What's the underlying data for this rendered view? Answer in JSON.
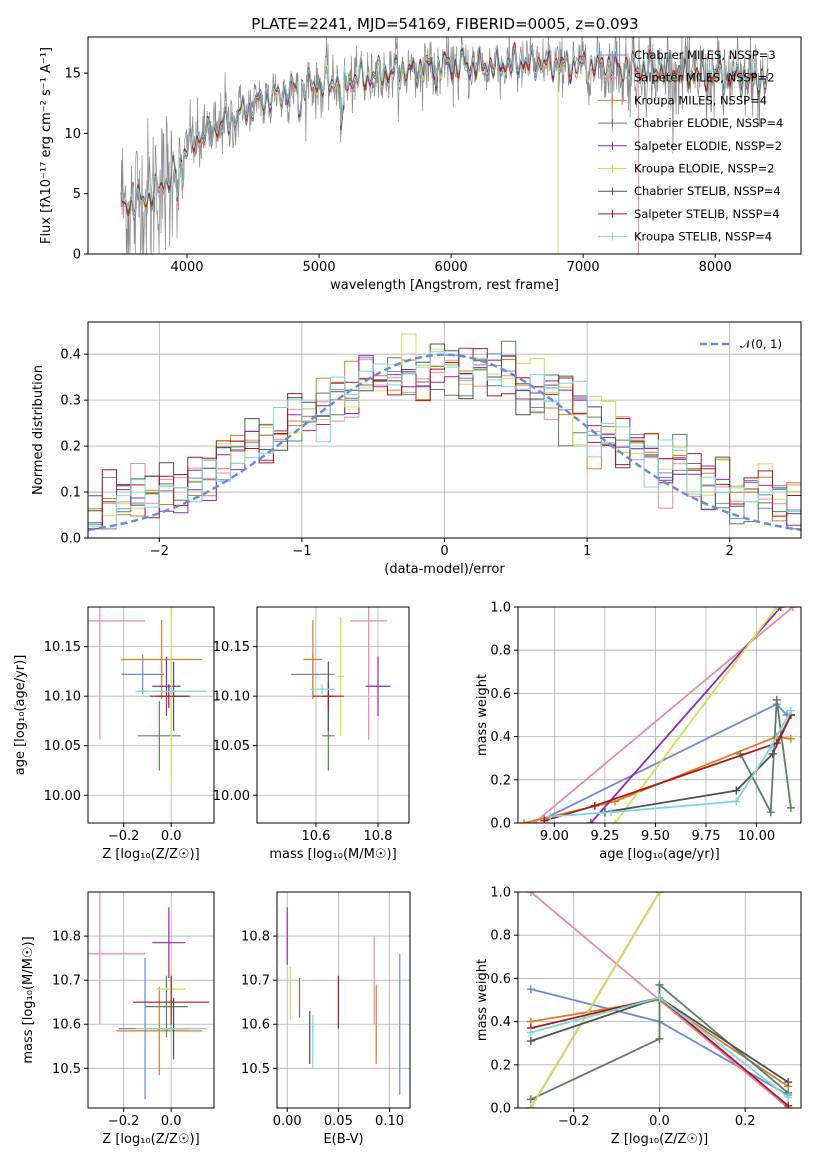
{
  "title": "PLATE=2241, MJD=54169, FIBERID=0005, z=0.093",
  "colors": {
    "Chabrier MILES": "#6a8bd6",
    "Salpeter MILES": "#e78ca8",
    "Kroupa MILES": "#e07b20",
    "Chabrier ELODIE": "#5a8060",
    "Salpeter ELODIE": "#9a25b0",
    "Kroupa ELODIE": "#cfe050",
    "Chabrier STELIB": "#505050",
    "Salpeter STELIB": "#b01818",
    "Kroupa STELIB": "#78d8e0",
    "spectrum": "#888888",
    "normal": "#6a8bd6"
  },
  "chart_data": [
    {
      "type": "line",
      "id": "spectrum",
      "title": "PLATE=2241, MJD=54169, FIBERID=0005, z=0.093",
      "xlabel": "wavelength [Angstrom, rest frame]",
      "ylabel": "Flux [f$_\\lambda$10$^{-17}$ erg cm$^{-2}$ s$^{-1}$ A$^{-1}$]",
      "ylabel_display": "Flux [fλ10⁻¹⁷ erg cm⁻² s⁻¹ A⁻¹]",
      "xlim": [
        3250,
        8650
      ],
      "ylim": [
        0,
        18
      ],
      "xticks": [
        4000,
        5000,
        6000,
        7000,
        8000
      ],
      "yticks": [
        0,
        5,
        10,
        15
      ],
      "grid": false,
      "legend_position": "upper right",
      "legend": [
        "Chabrier MILES, N$_{SSP}$=3",
        "Salpeter MILES, N$_{SSP}$=2",
        "Kroupa MILES, N$_{SSP}$=4",
        "Chabrier ELODIE, N$_{SSP}$=4",
        "Salpeter ELODIE, N$_{SSP}$=2",
        "Kroupa ELODIE, N$_{SSP}$=2",
        "Chabrier STELIB, N$_{SSP}$=4",
        "Salpeter STELIB, N$_{SSP}$=4",
        "Kroupa STELIB, N$_{SSP}$=4"
      ],
      "legend_display": [
        "Chabrier MILES, NSSP=3",
        "Salpeter MILES, NSSP=2",
        "Kroupa MILES, NSSP=4",
        "Chabrier ELODIE, NSSP=4",
        "Salpeter ELODIE, NSSP=2",
        "Kroupa ELODIE, NSSP=2",
        "Chabrier STELIB, NSSP=4",
        "Salpeter STELIB, NSSP=4",
        "Kroupa STELIB, NSSP=4"
      ],
      "continuum": {
        "x": [
          3500,
          3600,
          3700,
          3800,
          3900,
          3950,
          4000,
          4100,
          4200,
          4300,
          4400,
          4500,
          4700,
          4900,
          5100,
          5300,
          5500,
          5700,
          5900,
          6100,
          6300,
          6500,
          6700,
          6900,
          7100,
          7300,
          7500,
          7700,
          7900,
          8100,
          8300,
          8400
        ],
        "y": [
          4.0,
          4.1,
          4.7,
          5.5,
          6.8,
          7.6,
          9.0,
          9.6,
          10.2,
          11.0,
          11.7,
          12.4,
          13.3,
          13.9,
          14.2,
          14.5,
          15.0,
          15.2,
          15.6,
          15.6,
          15.6,
          15.8,
          15.8,
          15.6,
          15.6,
          15.4,
          15.3,
          15.0,
          14.8,
          14.6,
          14.4,
          14.4
        ]
      },
      "drop_lines": [
        {
          "x": 6810,
          "model": "Kroupa ELODIE"
        },
        {
          "x": 7420,
          "model": "Salpeter MILES"
        }
      ]
    },
    {
      "type": "histogram",
      "id": "residuals",
      "xlabel": "(data-model)/error",
      "ylabel": "Normed distribution",
      "xlim": [
        -2.5,
        2.5
      ],
      "ylim": [
        0,
        0.47
      ],
      "xticks": [
        -2,
        -1,
        0,
        1,
        2
      ],
      "yticks": [
        0.0,
        0.1,
        0.2,
        0.3,
        0.4
      ],
      "grid": true,
      "bin_width": 0.1,
      "reference": {
        "label": "$\\mathcal{N}(0,1)$",
        "display": "𝒩(0, 1)",
        "mean": 0,
        "sigma": 1,
        "style": "dashed"
      }
    },
    {
      "type": "scatter",
      "id": "age-vs-Z",
      "xlabel": "Z [log$_{10}$(Z/Z$_\\odot$)]",
      "xlabel_display": "Z [log₁₀(Z/Z☉)]",
      "ylabel": "age  [log$_{10}$(age/yr)]",
      "ylabel_display": "age  [log₁₀(age/yr)]",
      "xlim": [
        -0.35,
        0.18
      ],
      "ylim": [
        9.972,
        10.19
      ],
      "xticks": [
        -0.2,
        0.0
      ],
      "yticks": [
        10.0,
        10.05,
        10.1,
        10.15
      ],
      "grid": true,
      "points": [
        {
          "model": "Chabrier MILES",
          "x": -0.12,
          "y": 10.122,
          "xerr": 0.09,
          "yerr": 0.02
        },
        {
          "model": "Salpeter MILES",
          "x": -0.3,
          "y": 10.176,
          "xerr": 0.19,
          "yerr": 0.12
        },
        {
          "model": "Kroupa MILES",
          "x": -0.04,
          "y": 10.137,
          "xerr": 0.17,
          "yerr": 0.04
        },
        {
          "model": "Chabrier ELODIE",
          "x": -0.05,
          "y": 10.06,
          "xerr": 0.09,
          "yerr": 0.035
        },
        {
          "model": "Salpeter ELODIE",
          "x": -0.02,
          "y": 10.11,
          "xerr": 0.06,
          "yerr": 0.03
        },
        {
          "model": "Kroupa ELODIE",
          "x": 0.0,
          "y": 10.105,
          "xerr": 0.01,
          "yerr": 0.09
        },
        {
          "model": "Chabrier STELIB",
          "x": 0.01,
          "y": 10.1,
          "xerr": 0.07,
          "yerr": 0.035
        },
        {
          "model": "Salpeter STELIB",
          "x": -0.01,
          "y": 10.1,
          "xerr": 0.08,
          "yerr": 0.012
        },
        {
          "model": "Kroupa STELIB",
          "x": 0.0,
          "y": 10.105,
          "xerr": 0.15,
          "yerr": 0.005
        }
      ]
    },
    {
      "type": "scatter",
      "id": "age-vs-mass",
      "xlabel": "mass [log$_{10}$(M/M$_\\odot$)]",
      "xlabel_display": "mass [log₁₀(M/M☉)]",
      "ylabel": "",
      "xlim": [
        10.41,
        10.9
      ],
      "ylim": [
        9.972,
        10.19
      ],
      "xticks": [
        10.6,
        10.8
      ],
      "yticks": [
        10.0,
        10.05,
        10.1,
        10.15
      ],
      "grid": true,
      "points": [
        {
          "model": "Chabrier MILES",
          "x": 10.59,
          "y": 10.122,
          "xerr": 0.07,
          "yerr": 0.02
        },
        {
          "model": "Salpeter MILES",
          "x": 10.77,
          "y": 10.176,
          "xerr": 0.06,
          "yerr": 0.12
        },
        {
          "model": "Kroupa MILES",
          "x": 10.59,
          "y": 10.137,
          "xerr": 0.03,
          "yerr": 0.04
        },
        {
          "model": "Chabrier ELODIE",
          "x": 10.64,
          "y": 10.06,
          "xerr": 0.02,
          "yerr": 0.035
        },
        {
          "model": "Salpeter ELODIE",
          "x": 10.8,
          "y": 10.11,
          "xerr": 0.04,
          "yerr": 0.03
        },
        {
          "model": "Kroupa ELODIE",
          "x": 10.68,
          "y": 10.12,
          "xerr": 0.01,
          "yerr": 0.06
        },
        {
          "model": "Chabrier STELIB",
          "x": 10.64,
          "y": 10.1,
          "xerr": 0.02,
          "yerr": 0.035
        },
        {
          "model": "Salpeter STELIB",
          "x": 10.64,
          "y": 10.1,
          "xerr": 0.05,
          "yerr": 0.015
        },
        {
          "model": "Kroupa STELIB",
          "x": 10.62,
          "y": 10.107,
          "xerr": 0.04,
          "yerr": 0.005
        }
      ]
    },
    {
      "type": "line",
      "id": "weight-vs-age",
      "xlabel": "age  [log$_{10}$(age/yr)]",
      "xlabel_display": "age  [log₁₀(age/yr)]",
      "ylabel": "mass weight",
      "xlim": [
        8.82,
        10.22
      ],
      "ylim": [
        0,
        1
      ],
      "xticks": [
        9.0,
        9.25,
        9.5,
        9.75,
        10.0
      ],
      "yticks": [
        0.0,
        0.2,
        0.4,
        0.6,
        0.8,
        1.0
      ],
      "grid": true,
      "series": [
        {
          "model": "Chabrier MILES",
          "x": [
            8.95,
            10.1,
            10.15
          ],
          "y": [
            0.02,
            0.55,
            0.5
          ]
        },
        {
          "model": "Salpeter MILES",
          "x": [
            8.9,
            10.18
          ],
          "y": [
            0.0,
            1.0
          ]
        },
        {
          "model": "Kroupa MILES",
          "x": [
            8.85,
            9.3,
            10.1,
            10.17
          ],
          "y": [
            0.0,
            0.1,
            0.4,
            0.39
          ]
        },
        {
          "model": "Chabrier ELODIE",
          "x": [
            9.92,
            10.07,
            10.1,
            10.17
          ],
          "y": [
            0.32,
            0.05,
            0.57,
            0.07
          ]
        },
        {
          "model": "Salpeter ELODIE",
          "x": [
            9.18,
            10.12
          ],
          "y": [
            0.0,
            1.0
          ]
        },
        {
          "model": "Kroupa ELODIE",
          "x": [
            9.3,
            10.1
          ],
          "y": [
            0.0,
            1.0
          ]
        },
        {
          "model": "Chabrier STELIB",
          "x": [
            9.25,
            9.9,
            10.08,
            10.17
          ],
          "y": [
            0.05,
            0.15,
            0.32,
            0.5
          ]
        },
        {
          "model": "Salpeter STELIB",
          "x": [
            8.95,
            9.2,
            10.1,
            10.17
          ],
          "y": [
            0.01,
            0.08,
            0.37,
            0.5
          ]
        },
        {
          "model": "Kroupa STELIB",
          "x": [
            8.98,
            9.28,
            9.9,
            10.07,
            10.17
          ],
          "y": [
            0.03,
            0.05,
            0.1,
            0.35,
            0.52
          ]
        }
      ]
    },
    {
      "type": "scatter",
      "id": "mass-vs-Z",
      "xlabel": "Z [log$_{10}$(Z/Z$_\\odot$)]",
      "xlabel_display": "Z [log₁₀(Z/Z☉)]",
      "ylabel": "mass [log$_{10}$(M/M$_\\odot$)]",
      "ylabel_display": "mass [log₁₀(M/M☉)]",
      "xlim": [
        -0.35,
        0.18
      ],
      "ylim": [
        10.41,
        10.9
      ],
      "xticks": [
        -0.2,
        0.0
      ],
      "yticks": [
        10.5,
        10.6,
        10.7,
        10.8
      ],
      "grid": true,
      "points": [
        {
          "model": "Chabrier MILES",
          "x": -0.11,
          "y": 10.59,
          "xerr": 0.11,
          "yerr": 0.16
        },
        {
          "model": "Salpeter MILES",
          "x": -0.3,
          "y": 10.76,
          "xerr": 0.19,
          "yerr": 0.16
        },
        {
          "model": "Kroupa MILES",
          "x": -0.05,
          "y": 10.585,
          "xerr": 0.18,
          "yerr": 0.1
        },
        {
          "model": "Chabrier ELODIE",
          "x": -0.02,
          "y": 10.64,
          "xerr": 0.09,
          "yerr": 0.07
        },
        {
          "model": "Salpeter ELODIE",
          "x": -0.01,
          "y": 10.785,
          "xerr": 0.07,
          "yerr": 0.08
        },
        {
          "model": "Kroupa ELODIE",
          "x": 0.0,
          "y": 10.68,
          "xerr": 0.06,
          "yerr": 0.055
        },
        {
          "model": "Chabrier STELIB",
          "x": 0.01,
          "y": 10.59,
          "xerr": 0.07,
          "yerr": 0.07
        },
        {
          "model": "Salpeter STELIB",
          "x": 0.0,
          "y": 10.65,
          "xerr": 0.16,
          "yerr": 0.06
        },
        {
          "model": "Kroupa STELIB",
          "x": 0.0,
          "y": 10.59,
          "xerr": 0.15,
          "yerr": 0.01
        }
      ]
    },
    {
      "type": "scatter",
      "id": "mass-vs-ebv",
      "xlabel": "E(B-V)",
      "ylabel": "",
      "xlim": [
        -0.01,
        0.12
      ],
      "ylim": [
        10.41,
        10.9
      ],
      "xticks": [
        0.0,
        0.05,
        0.1
      ],
      "yticks": [
        10.5,
        10.6,
        10.7,
        10.8
      ],
      "grid": true,
      "points": [
        {
          "model": "Chabrier MILES",
          "x": 0.11,
          "y": 10.6,
          "xerr": 0,
          "yerr": 0.16
        },
        {
          "model": "Salpeter MILES",
          "x": 0.085,
          "y": 10.7,
          "xerr": 0,
          "yerr": 0.1
        },
        {
          "model": "Kroupa MILES",
          "x": 0.087,
          "y": 10.6,
          "xerr": 0,
          "yerr": 0.09
        },
        {
          "model": "Chabrier ELODIE",
          "x": 0.012,
          "y": 10.66,
          "xerr": 0,
          "yerr": 0.045
        },
        {
          "model": "Salpeter ELODIE",
          "x": 0.0,
          "y": 10.8,
          "xerr": 0,
          "yerr": 0.065
        },
        {
          "model": "Kroupa ELODIE",
          "x": 0.003,
          "y": 10.67,
          "xerr": 0,
          "yerr": 0.06
        },
        {
          "model": "Chabrier STELIB",
          "x": 0.022,
          "y": 10.57,
          "xerr": 0,
          "yerr": 0.06
        },
        {
          "model": "Salpeter STELIB",
          "x": 0.05,
          "y": 10.65,
          "xerr": 0,
          "yerr": 0.06
        },
        {
          "model": "Kroupa STELIB",
          "x": 0.025,
          "y": 10.56,
          "xerr": 0,
          "yerr": 0.06
        }
      ]
    },
    {
      "type": "line",
      "id": "weight-vs-Z",
      "xlabel": "Z [log$_{10}$(Z/Z$_\\odot$)]",
      "xlabel_display": "Z [log₁₀(Z/Z☉)]",
      "ylabel": "mass weight",
      "xlim": [
        -0.33,
        0.33
      ],
      "ylim": [
        0,
        1
      ],
      "xticks": [
        -0.2,
        0.0,
        0.2
      ],
      "yticks": [
        0.0,
        0.2,
        0.4,
        0.6,
        0.8,
        1.0
      ],
      "grid": true,
      "series": [
        {
          "model": "Chabrier MILES",
          "x": [
            -0.3,
            0.0,
            0.3
          ],
          "y": [
            0.55,
            0.4,
            0.06
          ]
        },
        {
          "model": "Salpeter MILES",
          "x": [
            -0.3,
            0.3
          ],
          "y": [
            1.0,
            0.0
          ]
        },
        {
          "model": "Kroupa MILES",
          "x": [
            -0.3,
            0.0,
            0.3
          ],
          "y": [
            0.4,
            0.5,
            0.1
          ]
        },
        {
          "model": "Chabrier ELODIE",
          "x": [
            -0.3,
            0.0,
            0.0,
            0.3
          ],
          "y": [
            0.04,
            0.32,
            0.57,
            0.07
          ]
        },
        {
          "model": "Salpeter ELODIE",
          "x": [
            -0.3,
            0.0
          ],
          "y": [
            0.0,
            1.0
          ]
        },
        {
          "model": "Kroupa ELODIE",
          "x": [
            -0.3,
            0.0
          ],
          "y": [
            0.0,
            1.0
          ]
        },
        {
          "model": "Chabrier STELIB",
          "x": [
            -0.3,
            0.0,
            0.3
          ],
          "y": [
            0.31,
            0.51,
            0.12
          ]
        },
        {
          "model": "Salpeter STELIB",
          "x": [
            -0.3,
            0.0,
            0.3
          ],
          "y": [
            0.37,
            0.51,
            0.01
          ]
        },
        {
          "model": "Kroupa STELIB",
          "x": [
            -0.3,
            0.0,
            0.3
          ],
          "y": [
            0.35,
            0.51,
            0.05
          ]
        }
      ]
    }
  ]
}
